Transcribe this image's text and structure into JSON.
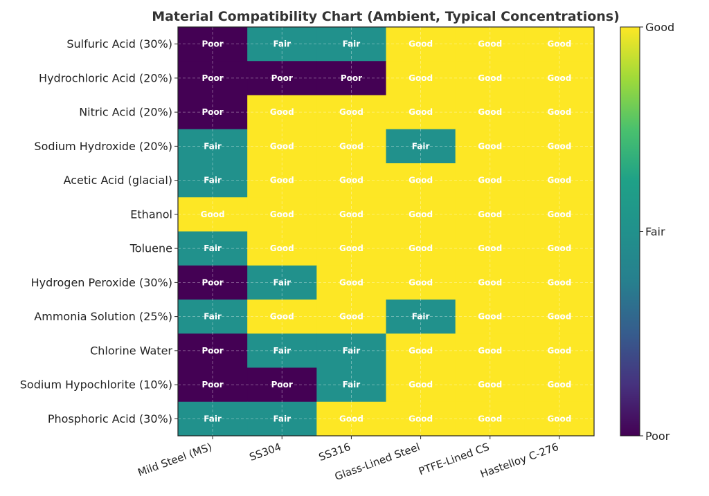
{
  "chart_data": {
    "type": "heatmap",
    "title": "Material Compatibility Chart (Ambient, Typical Concentrations)",
    "rows": [
      "Sulfuric Acid (30%)",
      "Hydrochloric Acid (20%)",
      "Nitric Acid (20%)",
      "Sodium Hydroxide (20%)",
      "Acetic Acid (glacial)",
      "Ethanol",
      "Toluene",
      "Hydrogen Peroxide (30%)",
      "Ammonia Solution (25%)",
      "Chlorine Water",
      "Sodium Hypochlorite (10%)",
      "Phosphoric Acid (30%)"
    ],
    "columns": [
      "Mild Steel (MS)",
      "SS304",
      "SS316",
      "Glass-Lined Steel",
      "PTFE-Lined CS",
      "Hastelloy C-276"
    ],
    "levels": [
      "Poor",
      "Fair",
      "Good"
    ],
    "values": [
      [
        "Poor",
        "Fair",
        "Fair",
        "Good",
        "Good",
        "Good"
      ],
      [
        "Poor",
        "Poor",
        "Poor",
        "Good",
        "Good",
        "Good"
      ],
      [
        "Poor",
        "Good",
        "Good",
        "Good",
        "Good",
        "Good"
      ],
      [
        "Fair",
        "Good",
        "Good",
        "Fair",
        "Good",
        "Good"
      ],
      [
        "Fair",
        "Good",
        "Good",
        "Good",
        "Good",
        "Good"
      ],
      [
        "Good",
        "Good",
        "Good",
        "Good",
        "Good",
        "Good"
      ],
      [
        "Fair",
        "Good",
        "Good",
        "Good",
        "Good",
        "Good"
      ],
      [
        "Poor",
        "Fair",
        "Good",
        "Good",
        "Good",
        "Good"
      ],
      [
        "Fair",
        "Good",
        "Good",
        "Fair",
        "Good",
        "Good"
      ],
      [
        "Poor",
        "Fair",
        "Fair",
        "Good",
        "Good",
        "Good"
      ],
      [
        "Poor",
        "Poor",
        "Fair",
        "Good",
        "Good",
        "Good"
      ],
      [
        "Fair",
        "Fair",
        "Good",
        "Good",
        "Good",
        "Good"
      ]
    ],
    "colors": {
      "Poor": "#440154",
      "Fair": "#21918c",
      "Good": "#fde725"
    },
    "colormap": "viridis",
    "colorbar": {
      "ticks": [
        "Poor",
        "Fair",
        "Good"
      ]
    },
    "grid": true
  }
}
